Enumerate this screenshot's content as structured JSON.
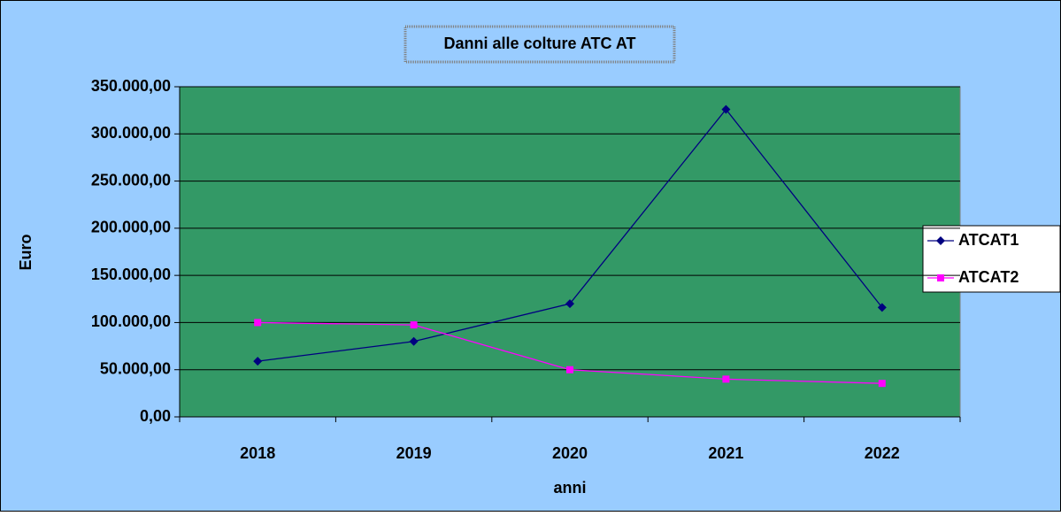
{
  "chart_data": {
    "type": "line",
    "title": "Danni alle colture ATC AT",
    "x_label": "anni",
    "y_label": "Euro",
    "categories": [
      "2018",
      "2019",
      "2020",
      "2021",
      "2022"
    ],
    "series": [
      {
        "name": "ATCAT1",
        "color": "#000080",
        "marker": "diamond",
        "values": [
          59000,
          80000,
          120000,
          326000,
          116000
        ]
      },
      {
        "name": "ATCAT2",
        "color": "#ff00ff",
        "marker": "square",
        "values": [
          100000,
          97500,
          50000,
          40000,
          35500
        ]
      }
    ],
    "ylim": [
      0,
      350000
    ],
    "yticks": [
      {
        "value": 0,
        "label": "0,00"
      },
      {
        "value": 50000,
        "label": "50.000,00"
      },
      {
        "value": 100000,
        "label": "100.000,00"
      },
      {
        "value": 150000,
        "label": "150.000,00"
      },
      {
        "value": 200000,
        "label": "200.000,00"
      },
      {
        "value": 250000,
        "label": "250.000,00"
      },
      {
        "value": 300000,
        "label": "300.000,00"
      },
      {
        "value": 350000,
        "label": "350.000,00"
      }
    ],
    "grid": true,
    "legend": "right",
    "plot_background": "#339966",
    "background": "#99ccff"
  }
}
